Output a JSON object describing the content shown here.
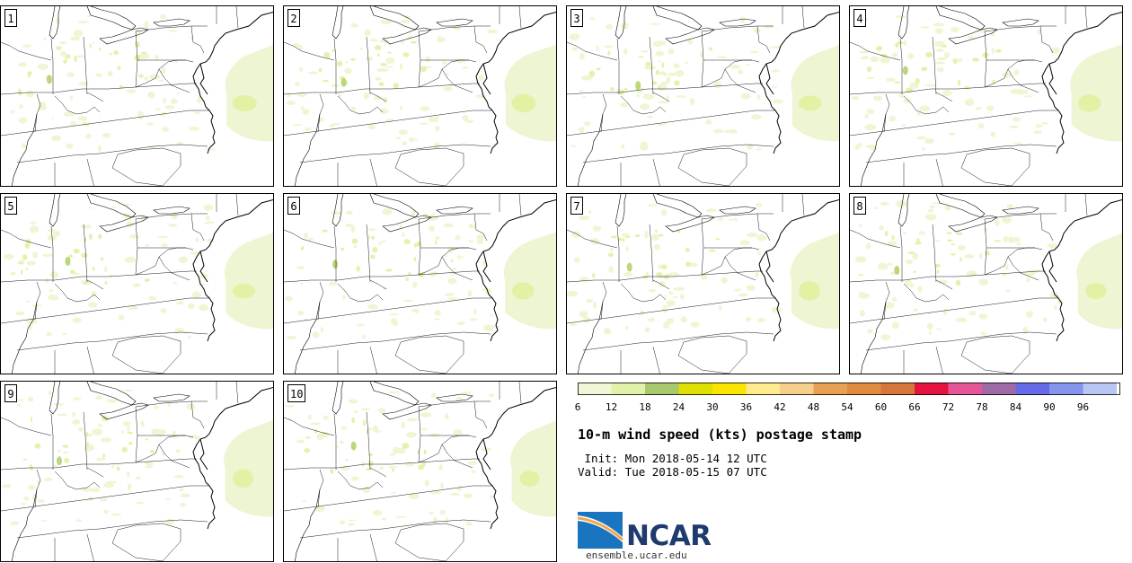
{
  "panels": [
    {
      "label": "1"
    },
    {
      "label": "2"
    },
    {
      "label": "3"
    },
    {
      "label": "4"
    },
    {
      "label": "5"
    },
    {
      "label": "6"
    },
    {
      "label": "7"
    },
    {
      "label": "8"
    },
    {
      "label": "9"
    },
    {
      "label": "10"
    }
  ],
  "legend": {
    "ticks": [
      "6",
      "12",
      "18",
      "24",
      "30",
      "36",
      "42",
      "48",
      "54",
      "60",
      "66",
      "72",
      "78",
      "84",
      "90",
      "96"
    ],
    "colors": [
      "#f1f7d6",
      "#e1f2a8",
      "#a7c96b",
      "#dde000",
      "#fbe400",
      "#fdeb8d",
      "#f6d08b",
      "#e8a154",
      "#e08a3e",
      "#d6763a",
      "#e6123f",
      "#e55699",
      "#a06aa6",
      "#6669e8",
      "#8595ee",
      "#b9c6f3"
    ]
  },
  "title": "10-m wind speed (kts) postage stamp",
  "init_text": " Init: Mon 2018-05-14 12 UTC",
  "valid_text": "Valid: Tue 2018-05-15 07 UTC",
  "logo": {
    "name": "NCAR",
    "url": "ensemble.ucar.edu"
  },
  "colors": {
    "wind_light": "#eef5d2",
    "wind_mid": "#e2f1a4",
    "wind_strong": "#b4d36a"
  }
}
